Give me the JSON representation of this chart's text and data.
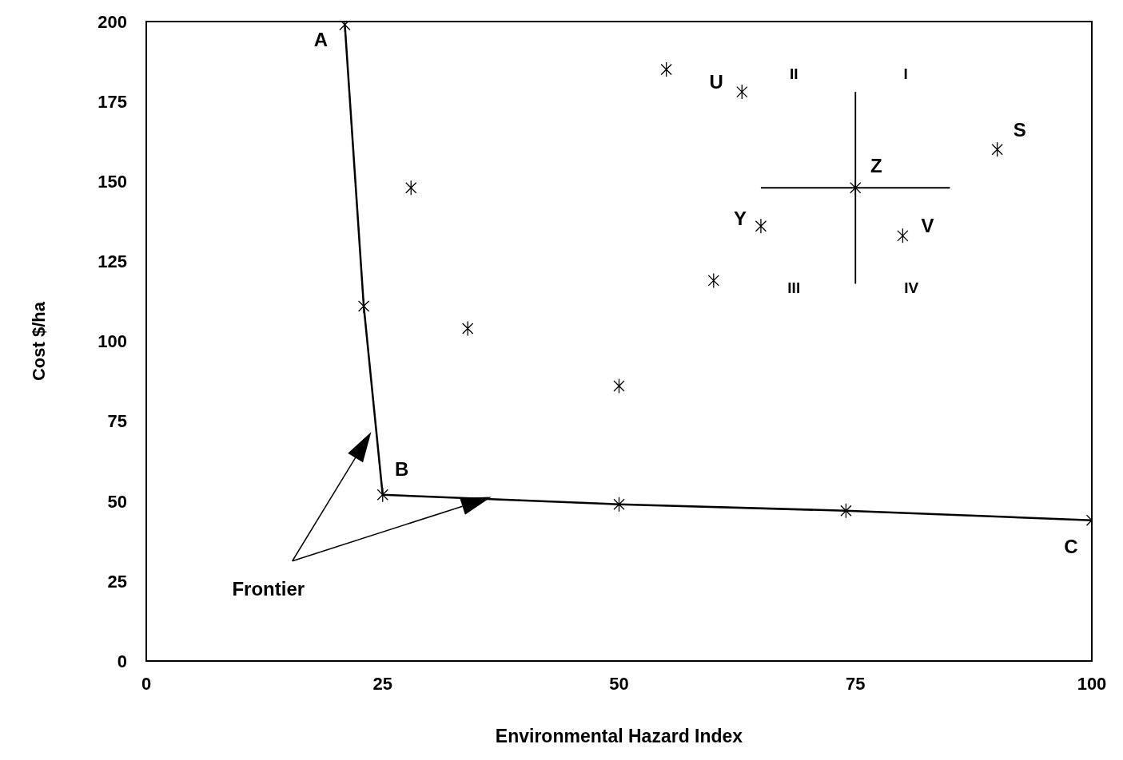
{
  "chart_data": {
    "type": "scatter",
    "xlabel": "Environmental Hazard Index",
    "ylabel": "Cost  $/ha",
    "xlim": [
      0,
      100
    ],
    "ylim": [
      0,
      200
    ],
    "xticks": [
      0,
      25,
      50,
      75,
      100
    ],
    "yticks": [
      0,
      25,
      50,
      75,
      100,
      125,
      150,
      175,
      200
    ],
    "marker": "cross",
    "series": [
      {
        "color": "#000000",
        "x": [
          28,
          34,
          50,
          55,
          60,
          63,
          65,
          75,
          80,
          90
        ],
        "values": [
          148,
          104,
          86,
          185,
          119,
          178,
          136,
          148,
          133,
          160
        ],
        "errors": [
          null,
          null,
          null,
          null,
          null,
          null,
          null,
          [
            118,
            178
          ],
          null,
          null
        ],
        "xerrors": [
          null,
          null,
          null,
          null,
          null,
          null,
          null,
          [
            65,
            85
          ],
          null,
          null
        ]
      },
      {
        "type": "line",
        "color": "#000000",
        "line_style": "solid",
        "x": [
          21,
          23,
          25,
          50,
          74,
          100
        ],
        "values": [
          199,
          111,
          52,
          49,
          47,
          44
        ]
      }
    ],
    "annotations": [
      {
        "text": "A",
        "x": 21,
        "y": 199
      },
      {
        "text": "B",
        "x": 25,
        "y": 52
      },
      {
        "text": "C",
        "x": 100,
        "y": 44
      },
      {
        "text": "U",
        "x": 63,
        "y": 178
      },
      {
        "text": "Y",
        "x": 65,
        "y": 136
      },
      {
        "text": "Z",
        "x": 75,
        "y": 148
      },
      {
        "text": "V",
        "x": 80,
        "y": 133
      },
      {
        "text": "S",
        "x": 90,
        "y": 160
      },
      "II",
      "I",
      "III",
      "IV",
      "Frontier"
    ]
  }
}
